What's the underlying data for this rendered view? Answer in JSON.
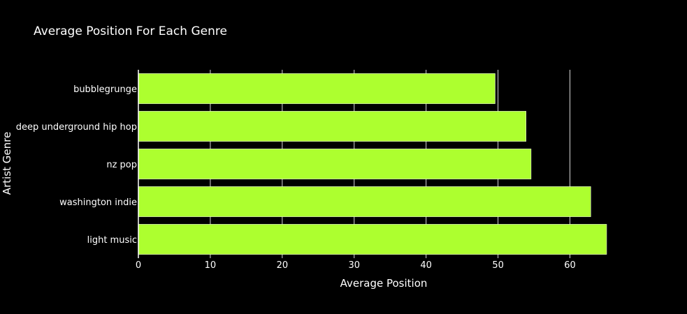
{
  "chart_data": {
    "type": "bar",
    "orientation": "horizontal",
    "title": "Average Position For Each Genre",
    "xlabel": "Average Position",
    "ylabel": "Artist Genre",
    "categories": [
      "bubblegrunge",
      "deep underground hip hop",
      "nz pop",
      "washington indie",
      "light music"
    ],
    "values": [
      49.6,
      53.9,
      54.6,
      62.9,
      65.1
    ],
    "xlim": [
      0,
      65.1
    ],
    "xticks": [
      0,
      10,
      20,
      30,
      40,
      50,
      60
    ],
    "grid": true,
    "bar_color": "#adff2f",
    "background_color": "#000000",
    "grid_color": "#ffffff"
  }
}
